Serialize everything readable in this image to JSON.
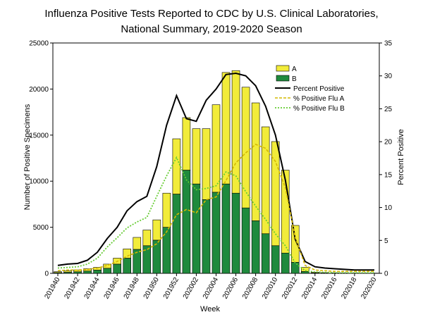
{
  "chart_data": {
    "type": "bar",
    "title_line1": "Influenza Positive Tests Reported to CDC by U.S. Clinical Laboratories,",
    "title_line2": "National Summary, 2019-2020 Season",
    "xlabel": "Week",
    "ylabel_left": "Number of Positive Specimens",
    "ylabel_right": "Percent Positive",
    "ylim_left": [
      0,
      25000
    ],
    "ylim_right": [
      0,
      35
    ],
    "yticks_left": [
      "0",
      "5000",
      "10000",
      "15000",
      "20000",
      "25000"
    ],
    "yticks_right": [
      "0",
      "5",
      "10",
      "15",
      "20",
      "25",
      "30",
      "35"
    ],
    "x_tick_labels": [
      "201940",
      "201942",
      "201944",
      "201946",
      "201948",
      "201950",
      "201952",
      "202002",
      "202004",
      "202006",
      "202008",
      "202010",
      "202012",
      "202014",
      "202016",
      "202018",
      "202020"
    ],
    "weeks": [
      "201940",
      "201941",
      "201942",
      "201943",
      "201944",
      "201945",
      "201946",
      "201947",
      "201948",
      "201949",
      "201950",
      "201951",
      "201952",
      "202001",
      "202002",
      "202003",
      "202004",
      "202005",
      "202006",
      "202007",
      "202008",
      "202009",
      "202010",
      "202011",
      "202012",
      "202013",
      "202014",
      "202015",
      "202016",
      "202017",
      "202018",
      "202019",
      "202020"
    ],
    "series": [
      {
        "name": "A",
        "type": "stacked-bar",
        "color": "#f2ec3a",
        "values": [
          100,
          150,
          200,
          250,
          300,
          450,
          650,
          1000,
          1300,
          1700,
          2200,
          3700,
          6000,
          5700,
          6000,
          7700,
          9500,
          12100,
          13300,
          13100,
          12800,
          11600,
          11300,
          9000,
          4000,
          450,
          70,
          40,
          30,
          25,
          20,
          15,
          15
        ]
      },
      {
        "name": "B",
        "type": "stacked-bar",
        "color": "#1f8a3d",
        "values": [
          80,
          120,
          170,
          250,
          350,
          550,
          1000,
          1650,
          2600,
          3000,
          3600,
          5000,
          8600,
          11200,
          9700,
          8000,
          8800,
          9700,
          8700,
          7100,
          5700,
          4300,
          3000,
          2200,
          1200,
          200,
          50,
          30,
          20,
          15,
          10,
          10,
          10
        ]
      },
      {
        "name": "Percent Positive",
        "type": "line",
        "color": "#000000",
        "values": [
          1.2,
          1.4,
          1.5,
          2.0,
          3.2,
          5.3,
          7.0,
          9.5,
          10.9,
          11.7,
          16.2,
          22.5,
          27.0,
          23.5,
          23.1,
          26.3,
          28.0,
          30.2,
          30.4,
          30.0,
          28.5,
          25.4,
          21.0,
          14.2,
          5.2,
          1.8,
          1.0,
          0.8,
          0.7,
          0.6,
          0.5,
          0.5,
          0.5
        ]
      },
      {
        "name": "% Positive Flu A",
        "type": "line",
        "color": "#d4b800",
        "values": [
          0.4,
          0.5,
          0.5,
          0.6,
          0.8,
          1.2,
          1.8,
          2.6,
          3.2,
          3.6,
          4.5,
          6.3,
          8.9,
          9.7,
          9.2,
          11.2,
          11.6,
          14.1,
          16.8,
          18.3,
          19.6,
          19.0,
          17.0,
          13.0,
          5.5,
          1.2,
          0.5,
          0.4,
          0.3,
          0.3,
          0.3,
          0.3,
          0.3
        ]
      },
      {
        "name": "% Positive Flu B",
        "type": "line",
        "color": "#66cc33",
        "values": [
          0.8,
          0.9,
          1.0,
          1.4,
          2.3,
          4.0,
          5.4,
          6.9,
          7.8,
          8.5,
          11.7,
          14.8,
          17.6,
          14.2,
          12.7,
          12.9,
          13.3,
          15.4,
          14.8,
          12.4,
          10.2,
          8.2,
          6.0,
          4.2,
          1.6,
          0.4,
          0.2,
          0.15,
          0.1,
          0.1,
          0.1,
          0.1,
          0.1
        ]
      }
    ],
    "legend": {
      "position": "top-right",
      "entries": [
        "A",
        "B",
        "Percent Positive",
        "% Positive Flu A",
        "% Positive Flu B"
      ]
    }
  }
}
